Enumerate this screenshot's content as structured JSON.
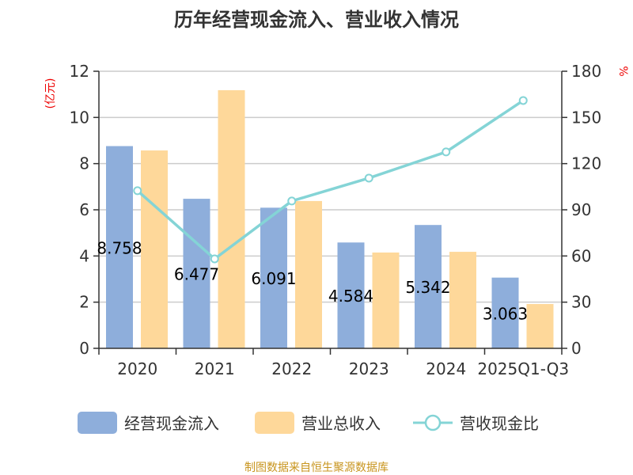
{
  "chart_data": {
    "type": "bar",
    "title": "历年经营现金流入、营业收入情况",
    "ylabel_left": "(亿元)",
    "ylabel_right": "%",
    "categories": [
      "2020",
      "2021",
      "2022",
      "2023",
      "2024",
      "2025Q1-Q3"
    ],
    "ylim_left": [
      0,
      12
    ],
    "yticks_left": [
      0,
      2,
      4,
      6,
      8,
      10,
      12
    ],
    "ylim_right": [
      0,
      180
    ],
    "yticks_right": [
      0,
      30,
      60,
      90,
      120,
      150,
      180
    ],
    "grid": true,
    "legend_position": "bottom",
    "series": [
      {
        "name": "经营现金流入",
        "type": "bar",
        "axis": "left",
        "color": "#8eaedb",
        "values": [
          8.758,
          6.477,
          6.091,
          4.584,
          5.342,
          3.063
        ],
        "labels": [
          "8.758",
          "6.477",
          "6.091",
          "4.584",
          "5.342",
          "3.063"
        ]
      },
      {
        "name": "营业总收入",
        "type": "bar",
        "axis": "left",
        "color": "#fed89a",
        "values": [
          8.57,
          11.18,
          6.38,
          4.15,
          4.18,
          1.92
        ]
      },
      {
        "name": "营收现金比",
        "type": "line",
        "axis": "right",
        "color": "#84d4d6",
        "values": [
          102.4,
          58.1,
          95.7,
          110.6,
          127.6,
          161.0
        ]
      }
    ]
  },
  "footer": "制图数据来自恒生聚源数据库"
}
